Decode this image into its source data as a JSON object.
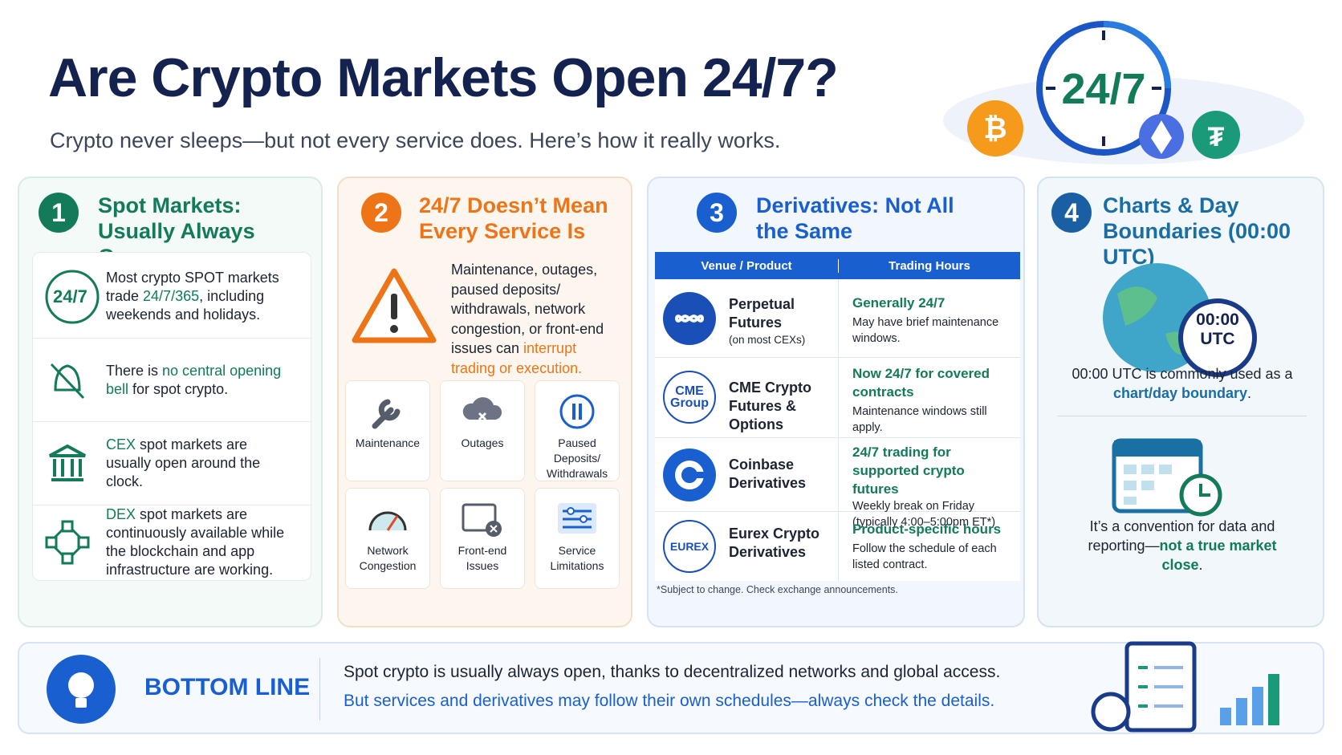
{
  "header": {
    "title": "Are Crypto Markets Open 24/7?",
    "subtitle": "Crypto never sleeps—but not every service does. Here’s how it really works.",
    "badge": "24/7"
  },
  "sections": [
    {
      "number": "1",
      "title": "Spot Markets: Usually Always Open",
      "items": [
        {
          "icon_label": "24/7",
          "text": [
            "Most crypto SPOT markets trade ",
            "24/7/365",
            ", including weekends and holidays."
          ]
        },
        {
          "text": [
            "There is ",
            "no central opening bell",
            " for spot crypto."
          ]
        },
        {
          "text": [
            "CEX",
            " spot markets are usually open around the clock."
          ]
        },
        {
          "text": [
            "DEX",
            " spot markets are continuously available while the blockchain and app infrastructure are working."
          ]
        }
      ]
    },
    {
      "number": "2",
      "title": "24/7 Doesn’t Mean Every Service Is",
      "text": [
        "Maintenance, outages, paused deposits/ withdrawals, network congestion, or front-end issues can ",
        "interrupt trading or execution."
      ],
      "tiles": [
        "Maintenance",
        "Outages",
        "Paused Deposits/ Withdrawals",
        "Network Congestion",
        "Front-end Issues",
        "Service Limitations"
      ]
    },
    {
      "number": "3",
      "title": "Derivatives: Not All the Same",
      "columns": [
        "Venue / Product",
        "Trading Hours"
      ],
      "rows": [
        {
          "venue": "Perpetual Futures",
          "venue_note": "(on most CEXs)",
          "hours": "Generally 24/7",
          "note": "May have brief maintenance windows."
        },
        {
          "logo": "CME Group",
          "venue": "CME Crypto Futures & Options",
          "hours": "Now 24/7 for covered contracts",
          "note": "Maintenance windows still apply."
        },
        {
          "venue": "Coinbase Derivatives",
          "hours": "24/7 trading for supported crypto futures",
          "note": "Weekly break on Friday (typically 4:00–5:00pm ET*)"
        },
        {
          "logo": "EUREX",
          "venue": "Eurex Crypto Derivatives",
          "hours": "Product-specific hours",
          "note": "Follow the schedule of each listed contract."
        }
      ],
      "footnote": "*Subject to change. Check exchange announcements."
    },
    {
      "number": "4",
      "title": "Charts & Day Boundaries (00:00 UTC)",
      "badge": "00:00 UTC",
      "text1": [
        "00:00 UTC is commonly used as a ",
        "chart/day boundary",
        "."
      ],
      "text2": [
        "It’s a convention for data and reporting—",
        "not a true market close",
        "."
      ]
    }
  ],
  "bottom_line": {
    "label": "BOTTOM LINE",
    "line1": "Spot crypto is usually always open, thanks to decentralized networks and global access.",
    "line2": "But services and derivatives may follow their own schedules—always check the details."
  }
}
